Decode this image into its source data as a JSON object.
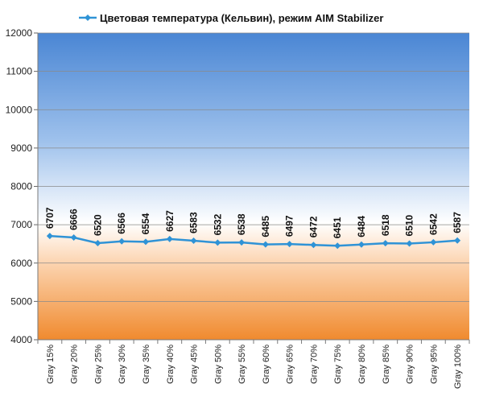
{
  "chart_data": {
    "type": "line",
    "title": "",
    "xlabel": "",
    "ylabel": "",
    "categories": [
      "Gray 15%",
      "Gray 20%",
      "Gray 25%",
      "Gray 30%",
      "Gray 35%",
      "Gray 40%",
      "Gray 45%",
      "Gray 50%",
      "Gray 55%",
      "Gray 60%",
      "Gray 65%",
      "Gray 70%",
      "Gray 75%",
      "Gray 80%",
      "Gray 85%",
      "Gray 90%",
      "Gray 95%",
      "Gray 100%"
    ],
    "series": [
      {
        "name": "Цветовая температура (Кельвин), режим AIM  Stabilizer",
        "values": [
          6707,
          6666,
          6520,
          6566,
          6554,
          6627,
          6583,
          6532,
          6538,
          6485,
          6497,
          6472,
          6451,
          6484,
          6518,
          6510,
          6542,
          6587
        ],
        "color": "#2f93d6"
      }
    ],
    "ylim": [
      4000,
      12000
    ],
    "yticks": [
      4000,
      5000,
      6000,
      7000,
      8000,
      9000,
      10000,
      11000,
      12000
    ],
    "grid": true,
    "legend": "top-center",
    "background": "blue-to-white-to-orange gradient"
  }
}
